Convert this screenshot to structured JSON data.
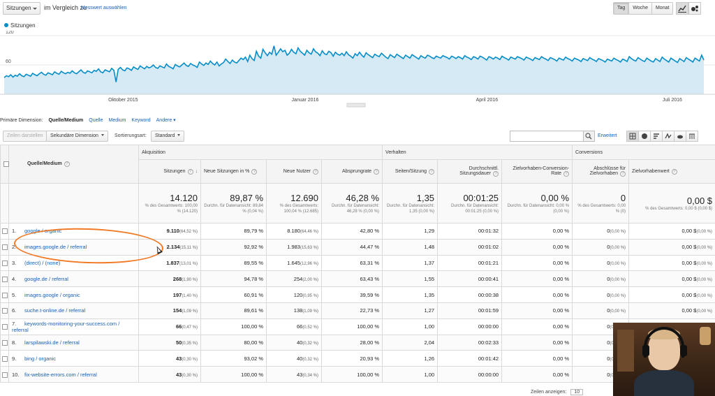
{
  "top": {
    "metric_select": "Sitzungen",
    "compare_label": "im Vergleich zu",
    "compare_link": "Messwert auswählen",
    "range_buttons": [
      "Tag",
      "Woche",
      "Monat"
    ],
    "active_range": "Tag"
  },
  "chart_data": {
    "type": "area",
    "series": [
      {
        "name": "Sitzungen",
        "values": [
          34,
          38,
          36,
          40,
          35,
          39,
          37,
          42,
          38,
          36,
          41,
          39,
          37,
          43,
          40,
          38,
          42,
          45,
          41,
          39,
          44,
          42,
          40,
          46,
          43,
          41,
          47,
          44,
          42,
          45,
          43,
          48,
          44,
          42,
          46,
          50,
          45,
          43,
          48,
          46,
          44,
          49,
          47,
          52,
          46,
          44,
          50,
          48,
          46,
          53,
          49,
          25,
          51,
          55,
          50,
          48,
          54,
          52,
          49,
          56,
          53,
          51,
          58,
          55,
          52,
          57,
          54,
          56,
          60,
          55,
          53,
          58,
          56,
          54,
          62,
          57,
          55,
          52,
          61,
          58,
          56,
          60,
          64,
          59,
          57,
          63,
          60,
          58,
          55,
          66,
          62,
          59,
          64,
          61,
          68,
          63,
          60,
          66,
          58,
          62,
          65,
          72,
          67,
          63,
          70,
          66,
          64,
          69,
          74,
          71,
          76,
          67,
          80,
          73,
          69,
          88,
          78,
          74,
          92,
          85,
          79,
          86,
          82,
          99,
          80,
          86,
          93,
          87,
          90,
          80,
          84,
          92,
          86,
          83,
          95,
          88,
          84,
          80,
          90,
          85,
          82,
          93,
          87,
          84,
          79,
          89,
          83,
          81,
          88,
          85,
          78,
          86,
          82,
          80,
          84,
          79,
          87,
          81,
          78,
          74,
          83,
          79,
          86,
          80,
          76,
          85,
          81,
          78,
          75,
          82,
          79,
          77,
          84,
          80,
          76,
          73,
          81,
          78,
          75,
          82,
          79,
          76,
          73,
          80,
          77,
          74,
          81,
          78,
          75,
          72,
          79,
          76,
          74,
          80,
          78,
          75,
          73,
          78,
          76,
          74,
          79,
          77,
          75,
          72,
          78,
          76,
          73,
          77,
          75,
          72,
          79,
          76,
          74,
          71,
          77,
          75,
          72,
          78,
          76,
          73,
          70,
          77,
          75,
          72,
          76,
          74,
          71,
          78,
          75,
          73,
          70,
          76,
          74,
          72,
          77,
          75,
          73,
          70,
          76,
          74,
          72,
          69,
          75,
          73,
          71,
          77,
          74,
          72,
          69,
          75,
          73,
          71,
          68,
          74,
          72,
          70,
          76,
          73,
          71,
          68,
          74,
          72,
          70,
          67,
          73,
          71,
          69,
          75,
          72,
          70,
          67,
          73,
          71,
          69,
          66,
          72,
          70,
          68,
          74,
          71,
          69,
          66,
          72,
          70,
          67,
          77,
          73,
          70,
          68,
          75,
          72,
          69,
          67,
          74,
          71,
          68,
          66,
          73,
          70,
          67,
          76,
          72,
          69,
          66,
          74,
          71,
          68,
          65,
          73,
          70,
          67,
          75,
          72,
          69,
          66,
          74,
          71,
          68,
          80,
          70
        ]
      }
    ],
    "y_ticks": [
      "120",
      "60"
    ],
    "ylim": [
      0,
      130
    ],
    "x_labels": [
      "Oktober 2015",
      "Januar 2016",
      "April 2016",
      "Juli 2016"
    ]
  },
  "primary_dimension": {
    "label": "Primäre Dimension:",
    "current": "Quelle/Medium",
    "options": [
      "Quelle",
      "Medium",
      "Keyword"
    ],
    "more": "Andere"
  },
  "toolbar": {
    "plot_rows": "Zeilen darstellen",
    "secondary_dimension": "Sekundäre Dimension",
    "sort_label": "Sortierungsart:",
    "sort_value": "Standard",
    "advanced": "Erweitert"
  },
  "table": {
    "dimension_header": "Quelle/Medium",
    "groups": [
      "Akquisition",
      "Verhalten",
      "Conversions"
    ],
    "columns": [
      "Sitzungen",
      "Neue Sitzungen in %",
      "Neue Nutzer",
      "Absprungrate",
      "Seiten/Sitzung",
      "Durchschnittl. Sitzungsdauer",
      "Zielvorhaben-Conversion-Rate",
      "Abschlüsse für Zielvorhaben",
      "Zielvorhabenwert"
    ],
    "totals": [
      {
        "value": "14.120",
        "sub": "% des Gesamtwerts: 100,00 % (14.120)"
      },
      {
        "value": "89,87 %",
        "sub": "Durchn. für Datenansicht: 89,84 % (0,04 %)"
      },
      {
        "value": "12.690",
        "sub": "% des Gesamtwerts: 100,04 % (12.685)"
      },
      {
        "value": "46,28 %",
        "sub": "Durchn. für Datenansicht: 46,28 % (0,00 %)"
      },
      {
        "value": "1,35",
        "sub": "Durchn. für Datenansicht: 1,35 (0,00 %)"
      },
      {
        "value": "00:01:25",
        "sub": "Durchn. für Datenansicht: 00:01:25 (0,00 %)"
      },
      {
        "value": "0,00 %",
        "sub": "Durchn. für Datenansicht: 0,00 % (0,00 %)"
      },
      {
        "value": "0",
        "sub": "% des Gesamtwerts: 0,00 % (0)"
      },
      {
        "value": "0,00 $",
        "sub": "% des Gesamtwerts: 0,00 $ (0,00 $)"
      }
    ],
    "rows": [
      {
        "n": "1.",
        "source": "google / organic",
        "sessions": "9.110",
        "sessions_pct": "(64,52 %)",
        "new_pct": "89,79 %",
        "new_users": "8.180",
        "new_users_pct": "(64,46 %)",
        "bounce": "42,80 %",
        "pages": "1,29",
        "duration": "00:01:32",
        "conv": "0,00 %",
        "goals": "0",
        "goals_pct": "(0,00 %)",
        "value": "0,00 $",
        "value_pct": "(0,00 %)"
      },
      {
        "n": "2.",
        "source": "images.google.de / referral",
        "sessions": "2.134",
        "sessions_pct": "(15,11 %)",
        "new_pct": "92,92 %",
        "new_users": "1.983",
        "new_users_pct": "(15,63 %)",
        "bounce": "44,47 %",
        "pages": "1,48",
        "duration": "00:01:02",
        "conv": "0,00 %",
        "goals": "0",
        "goals_pct": "(0,00 %)",
        "value": "0,00 $",
        "value_pct": "(0,00 %)"
      },
      {
        "n": "3.",
        "source": "(direct) / (none)",
        "sessions": "1.837",
        "sessions_pct": "(13,01 %)",
        "new_pct": "89,55 %",
        "new_users": "1.645",
        "new_users_pct": "(12,96 %)",
        "bounce": "63,31 %",
        "pages": "1,37",
        "duration": "00:01:21",
        "conv": "0,00 %",
        "goals": "0",
        "goals_pct": "(0,00 %)",
        "value": "0,00 $",
        "value_pct": "(0,00 %)"
      },
      {
        "n": "4.",
        "source": "google.de / referral",
        "sessions": "268",
        "sessions_pct": "(1,90 %)",
        "new_pct": "94,78 %",
        "new_users": "254",
        "new_users_pct": "(2,00 %)",
        "bounce": "63,43 %",
        "pages": "1,55",
        "duration": "00:00:41",
        "conv": "0,00 %",
        "goals": "0",
        "goals_pct": "(0,00 %)",
        "value": "0,00 $",
        "value_pct": "(0,00 %)"
      },
      {
        "n": "5.",
        "source": "images.google / organic",
        "sessions": "197",
        "sessions_pct": "(1,40 %)",
        "new_pct": "60,91 %",
        "new_users": "120",
        "new_users_pct": "(0,95 %)",
        "bounce": "39,59 %",
        "pages": "1,35",
        "duration": "00:00:38",
        "conv": "0,00 %",
        "goals": "0",
        "goals_pct": "(0,00 %)",
        "value": "0,00 $",
        "value_pct": "(0,00 %)"
      },
      {
        "n": "6.",
        "source": "suche.t-online.de / referral",
        "sessions": "154",
        "sessions_pct": "(1,09 %)",
        "new_pct": "89,61 %",
        "new_users": "138",
        "new_users_pct": "(1,09 %)",
        "bounce": "22,73 %",
        "pages": "1,27",
        "duration": "00:01:59",
        "conv": "0,00 %",
        "goals": "0",
        "goals_pct": "(0,00 %)",
        "value": "0,00 $",
        "value_pct": "(0,00 %)"
      },
      {
        "n": "7.",
        "source": "keywords-monitoring-your-success.com / referral",
        "sessions": "66",
        "sessions_pct": "(0,47 %)",
        "new_pct": "100,00 %",
        "new_users": "66",
        "new_users_pct": "(0,52 %)",
        "bounce": "100,00 %",
        "pages": "1,00",
        "duration": "00:00:00",
        "conv": "0,00 %",
        "goals": "0",
        "goals_pct": "(0,00 %)",
        "value": "0,00 $",
        "value_pct": "(0,00 %)"
      },
      {
        "n": "8.",
        "source": "larspilawski.de / referral",
        "sessions": "50",
        "sessions_pct": "(0,35 %)",
        "new_pct": "80,00 %",
        "new_users": "40",
        "new_users_pct": "(0,32 %)",
        "bounce": "28,00 %",
        "pages": "2,04",
        "duration": "00:02:33",
        "conv": "0,00 %",
        "goals": "0",
        "goals_pct": "(0,00 %)",
        "value": "0,00 $",
        "value_pct": "(0,00 %)"
      },
      {
        "n": "9.",
        "source": "bing / organic",
        "sessions": "43",
        "sessions_pct": "(0,30 %)",
        "new_pct": "93,02 %",
        "new_users": "40",
        "new_users_pct": "(0,32 %)",
        "bounce": "20,93 %",
        "pages": "1,26",
        "duration": "00:01:42",
        "conv": "0,00 %",
        "goals": "0",
        "goals_pct": "(0,00 %)",
        "value": "0,00 $",
        "value_pct": "(0,00 %)"
      },
      {
        "n": "10.",
        "source": "fix-website-errors.com / referral",
        "sessions": "43",
        "sessions_pct": "(0,30 %)",
        "new_pct": "100,00 %",
        "new_users": "43",
        "new_users_pct": "(0,34 %)",
        "bounce": "100,00 %",
        "pages": "1,00",
        "duration": "00:00:00",
        "conv": "0,00 %",
        "goals": "0",
        "goals_pct": "(0,00 %)",
        "value": "0,00 $",
        "value_pct": "(0,00 %)"
      }
    ]
  },
  "pager": {
    "label": "Zeilen anzeigen:",
    "value": "10"
  },
  "colors": {
    "accent": "#058dc7",
    "area_fill": "#d6eaf6",
    "link": "#1a5fb4",
    "highlight": "#f07a25"
  }
}
